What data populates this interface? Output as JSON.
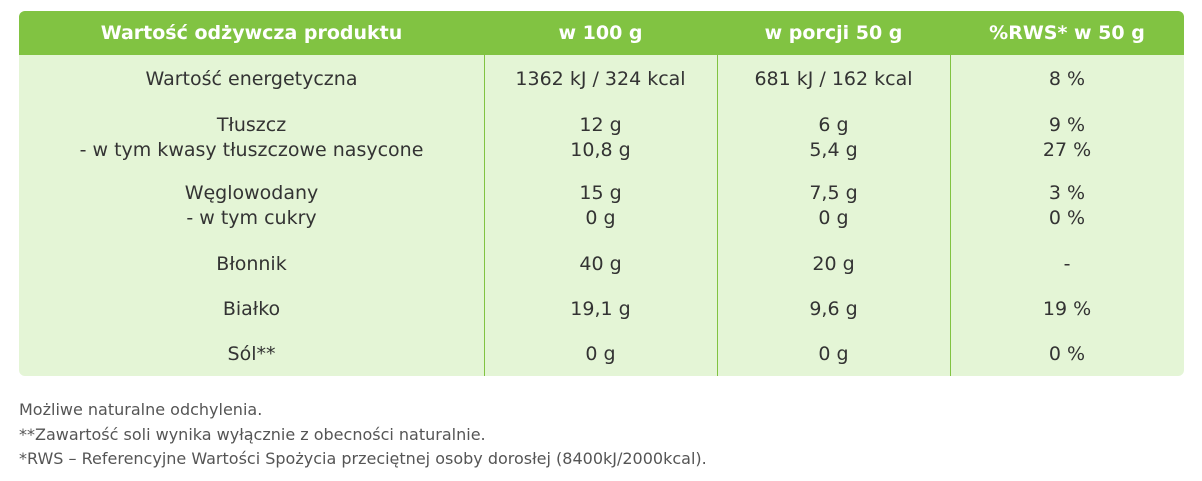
{
  "header": {
    "col1": "Wartość odżywcza produktu",
    "col2": "w 100 g",
    "col3": "w porcji 50 g",
    "col4": "%RWS* w 50 g"
  },
  "rows": [
    {
      "label": "Wartość energetyczna",
      "per100": "1362 kJ / 324 kcal",
      "perPortion": "681 kJ / 162 kcal",
      "rws": "8 %"
    },
    {
      "label": "Tłuszcz",
      "per100": "12 g",
      "perPortion": "6 g",
      "rws": "9 %",
      "sub": {
        "label": "- w tym kwasy tłuszczowe nasycone",
        "per100": "10,8 g",
        "perPortion": "5,4 g",
        "rws": "27 %"
      }
    },
    {
      "label": "Węglowodany",
      "per100": "15 g",
      "perPortion": "7,5 g",
      "rws": "3 %",
      "sub": {
        "label": "- w tym cukry",
        "per100": "0 g",
        "perPortion": "0 g",
        "rws": "0 %"
      }
    },
    {
      "label": "Błonnik",
      "per100": "40 g",
      "perPortion": "20 g",
      "rws": "-"
    },
    {
      "label": "Białko",
      "per100": "19,1 g",
      "perPortion": "9,6 g",
      "rws": "19 %"
    },
    {
      "label": "Sól**",
      "per100": "0 g",
      "perPortion": "0 g",
      "rws": "0 %"
    }
  ],
  "notes": [
    "Możliwe naturalne odchylenia.",
    "**Zawartość soli wynika wyłącznie z obecności naturalnie.",
    "*RWS – Referencyjne Wartości Spożycia przeciętnej osoby dorosłej (8400kJ/2000kcal)."
  ],
  "colors": {
    "header": "#81c342",
    "body": "#e4f5d6",
    "text": "#333333"
  }
}
